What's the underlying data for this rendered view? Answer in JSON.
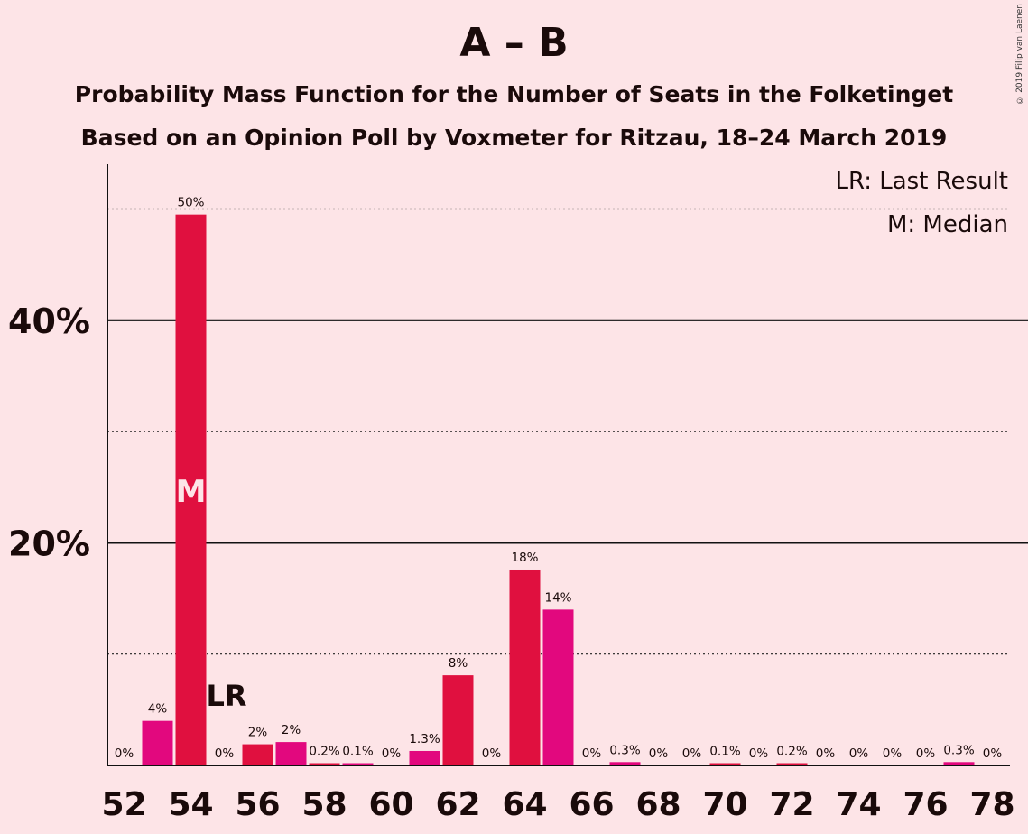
{
  "title": "A – B",
  "subtitle1": "Probability Mass Function for the Number of Seats in the Folketinget",
  "subtitle2": "Based on an Opinion Poll by Voxmeter for Ritzau, 18–24 March 2019",
  "copyright": "© 2019 Filip van Laenen",
  "legend": {
    "lr": "LR: Last Result",
    "m": "M: Median"
  },
  "colors": {
    "background": "#fde4e7",
    "bar_primary": "#e0103f",
    "bar_secondary": "#e2087e"
  },
  "chart_data": {
    "type": "bar",
    "categories": [
      52,
      53,
      54,
      55,
      56,
      57,
      58,
      59,
      60,
      61,
      62,
      63,
      64,
      65,
      66,
      67,
      68,
      69,
      70,
      71,
      72,
      73,
      74,
      75,
      76,
      77,
      78
    ],
    "values": [
      0,
      4,
      49.5,
      0,
      1.9,
      2.1,
      0.2,
      0.1,
      0,
      1.3,
      8.1,
      0,
      17.6,
      14.0,
      0,
      0.3,
      0,
      0,
      0.1,
      0,
      0.2,
      0,
      0,
      0,
      0,
      0.3,
      0
    ],
    "labels": [
      "0%",
      "4%",
      "50%",
      "0%",
      "2%",
      "2%",
      "0.2%",
      "0.1%",
      "0%",
      "1.3%",
      "8%",
      "0%",
      "18%",
      "14%",
      "0%",
      "0.3%",
      "0%",
      "0%",
      "0.1%",
      "0%",
      "0.2%",
      "0%",
      "0%",
      "0%",
      "0%",
      "0.3%",
      "0%"
    ],
    "x_tick_labels": [
      "52",
      "54",
      "56",
      "58",
      "60",
      "62",
      "64",
      "66",
      "68",
      "70",
      "72",
      "74",
      "76",
      "78"
    ],
    "y_tick_labels": [
      "20%",
      "40%"
    ],
    "ylim": [
      0,
      55
    ],
    "major_gridlines": [
      20,
      40
    ],
    "minor_gridlines": [
      10,
      30,
      50
    ],
    "median": {
      "seat": 54,
      "label": "M"
    },
    "last_result": {
      "seat": 55,
      "label": "LR"
    }
  }
}
